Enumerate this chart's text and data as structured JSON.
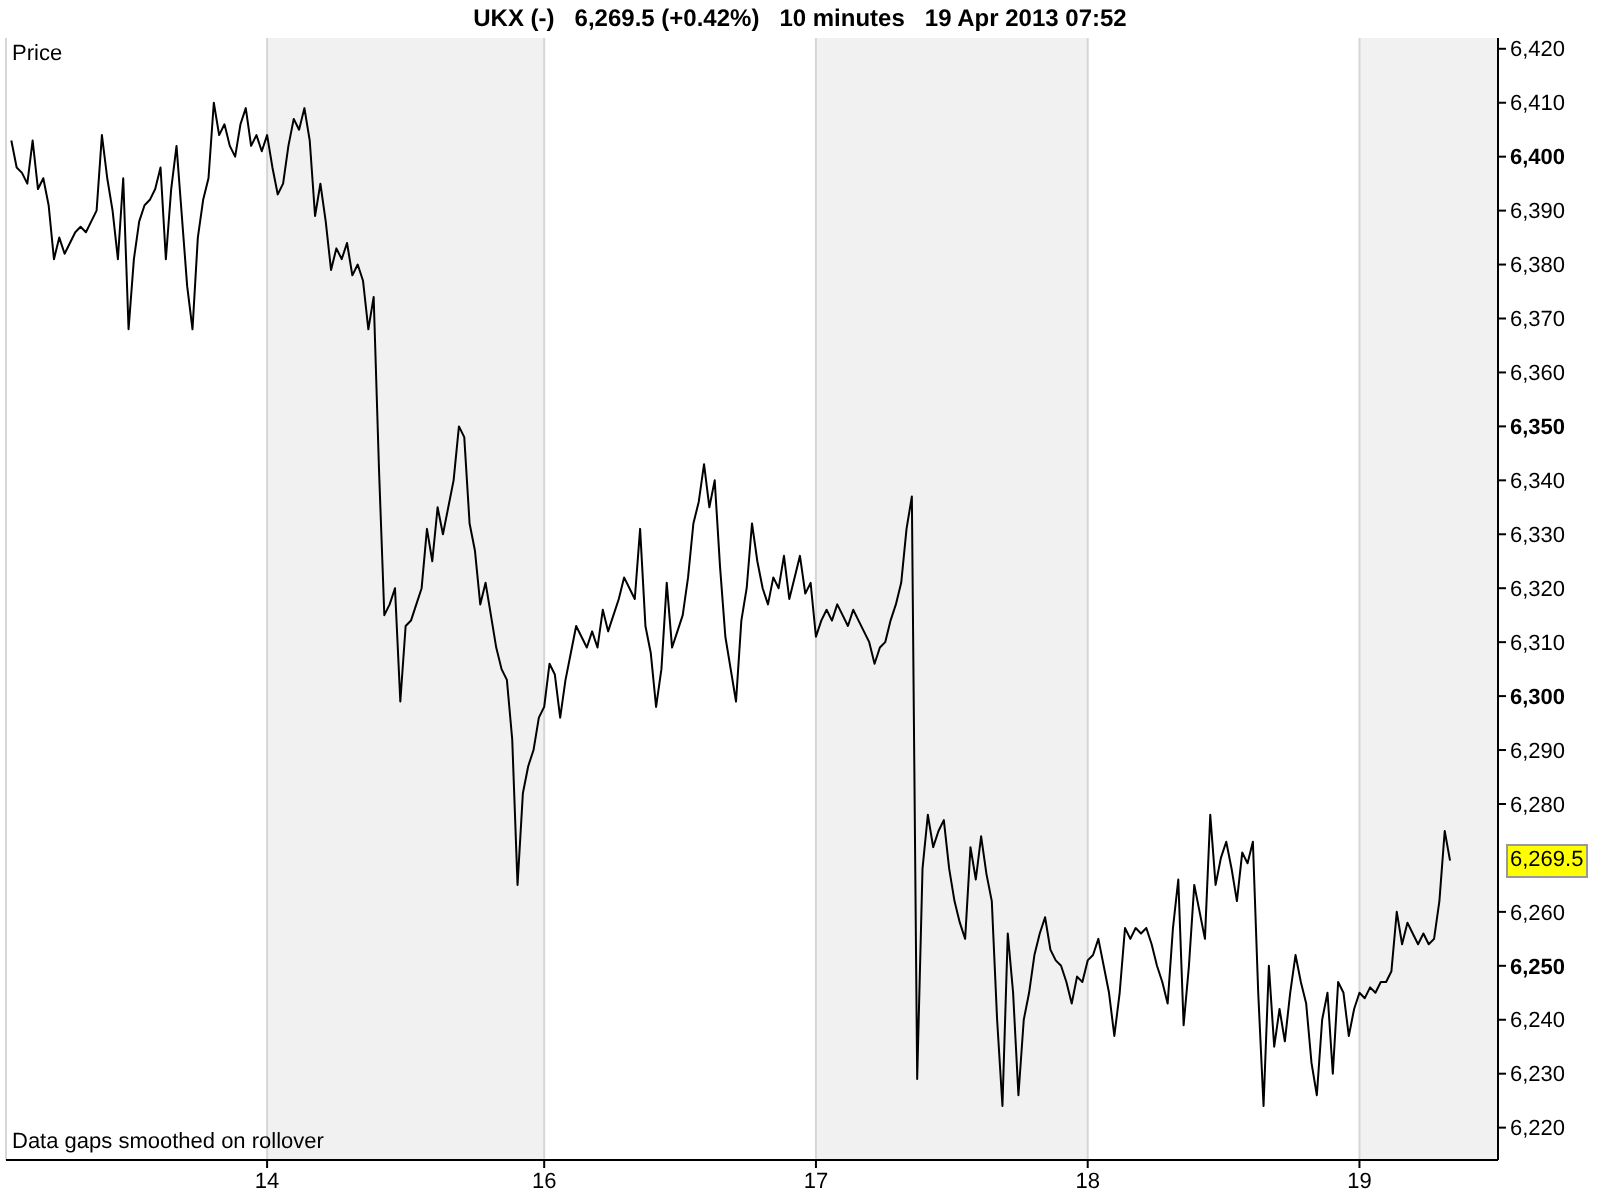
{
  "chart_data": {
    "type": "line",
    "title": "UKX (-)   6,269.5 (+0.42%)   10 minutes   19 Apr 2013 07:52",
    "ylabel": "Price",
    "annotations": [
      "6,269.5",
      "Data gaps smoothed on rollover"
    ],
    "categories": [
      null,
      null,
      null,
      null,
      null,
      null,
      null,
      null,
      null,
      null,
      null,
      null,
      null,
      null,
      null,
      null,
      null,
      null,
      null,
      null,
      null,
      null,
      null,
      null,
      null,
      null,
      null,
      null,
      null,
      null,
      null,
      null,
      null,
      null,
      null,
      null,
      null,
      null,
      null,
      null,
      null,
      null,
      null,
      null,
      null,
      null,
      null,
      null,
      null,
      "14",
      null,
      null,
      null,
      null,
      null,
      null,
      null,
      null,
      null,
      null,
      null,
      null,
      null,
      null,
      null,
      null,
      null,
      null,
      null,
      null,
      null,
      null,
      null,
      null,
      null,
      null,
      null,
      null,
      null,
      null,
      null,
      null,
      null,
      null,
      null,
      null,
      null,
      null,
      null,
      null,
      null,
      null,
      null,
      null,
      null,
      null,
      null,
      null,
      null,
      null,
      null,
      "16",
      null,
      null,
      null,
      null,
      null,
      null,
      null,
      null,
      null,
      null,
      null,
      null,
      null,
      null,
      null,
      null,
      null,
      null,
      null,
      null,
      null,
      null,
      null,
      null,
      null,
      null,
      null,
      null,
      null,
      null,
      null,
      null,
      null,
      null,
      null,
      null,
      null,
      null,
      null,
      null,
      null,
      null,
      null,
      null,
      null,
      null,
      null,
      null,
      null,
      null,
      "17",
      null,
      null,
      null,
      null,
      null,
      null,
      null,
      null,
      null,
      null,
      null,
      null,
      null,
      null,
      null,
      null,
      null,
      null,
      null,
      null,
      null,
      null,
      null,
      null,
      null,
      null,
      null,
      null,
      null,
      null,
      null,
      null,
      null,
      null,
      null,
      null,
      null,
      null,
      null,
      null,
      null,
      null,
      null,
      null,
      null,
      null,
      null,
      null,
      null,
      null,
      "18",
      null,
      null,
      null,
      null,
      null,
      null,
      null,
      null,
      null,
      null,
      null,
      null,
      null,
      null,
      null,
      null,
      null,
      null,
      null,
      null,
      null,
      null,
      null,
      null,
      null,
      null,
      null,
      null,
      null,
      null,
      null,
      null,
      null,
      null,
      null,
      null,
      null,
      null,
      null,
      null,
      null,
      null,
      null,
      null,
      null,
      null,
      null,
      null,
      null,
      null,
      "19",
      null,
      null,
      null,
      null,
      null,
      null,
      null,
      null,
      null,
      null,
      null,
      null,
      null,
      null,
      null,
      null,
      null,
      null,
      null,
      null,
      null,
      null,
      null,
      null,
      null,
      null
    ],
    "series": [
      {
        "color": "#000000",
        "values": [
          null,
          6403,
          6398,
          6397,
          6395,
          6403,
          6394,
          6396,
          6391,
          6381,
          6385,
          6382,
          6384,
          6386,
          6387,
          6386,
          6388,
          6390,
          6404,
          6396,
          6390,
          6381,
          6396,
          6368,
          6381,
          6388,
          6391,
          6392,
          6394,
          6398,
          6381,
          6394,
          6402,
          6389,
          6376,
          6368,
          6385,
          6392,
          6396,
          6410,
          6404,
          6406,
          6402,
          6400,
          6406,
          6409,
          6402,
          6404,
          6401,
          6404,
          6398,
          6393,
          6395,
          6402,
          6407,
          6405,
          6409,
          6403,
          6389,
          6395,
          6388,
          6379,
          6383,
          6381,
          6384,
          6378,
          6380,
          6377,
          6368,
          6374,
          6342,
          6315,
          6317,
          6320,
          6299,
          6313,
          6314,
          6317,
          6320,
          6331,
          6325,
          6335,
          6330,
          6335,
          6340,
          6350,
          6348,
          6332,
          6327,
          6317,
          6321,
          6315,
          6309,
          6305,
          6303,
          6292,
          6265,
          6282,
          6287,
          6290,
          6296,
          6298,
          6306,
          6304,
          6296,
          6303,
          6308,
          6313,
          6311,
          6309,
          6312,
          6309,
          6316,
          6312,
          6315,
          6318,
          6322,
          6320,
          6318,
          6331,
          6313,
          6308,
          6298,
          6305,
          6321,
          6309,
          6312,
          6315,
          6322,
          6332,
          6336,
          6343,
          6335,
          6340,
          6324,
          6311,
          6305,
          6299,
          6314,
          6320,
          6332,
          6325,
          6320,
          6317,
          6322,
          6320,
          6326,
          6318,
          6322,
          6326,
          6319,
          6321,
          6311,
          6314,
          6316,
          6314,
          6317,
          6315,
          6313,
          6316,
          6314,
          6312,
          6310,
          6306,
          6309,
          6310,
          6314,
          6317,
          6321,
          6331,
          6337,
          6229,
          6268,
          6278,
          6272,
          6275,
          6277,
          6268,
          6262,
          6258,
          6255,
          6272,
          6266,
          6274,
          6267,
          6262,
          6240,
          6224,
          6256,
          6245,
          6226,
          6240,
          6245,
          6252,
          6256,
          6259,
          6253,
          6251,
          6250,
          6247,
          6243,
          6248,
          6247,
          6251,
          6252,
          6255,
          6250,
          6245,
          6237,
          6245,
          6257,
          6255,
          6257,
          6256,
          6257,
          6254,
          6250,
          6247,
          6243,
          6257,
          6266,
          6239,
          6250,
          6265,
          6260,
          6255,
          6278,
          6265,
          6270,
          6273,
          6268,
          6262,
          6271,
          6269,
          6273,
          6245,
          6224,
          6250,
          6235,
          6242,
          6236,
          6245,
          6252,
          6247,
          6243,
          6232,
          6226,
          6240,
          6245,
          6230,
          6247,
          6245,
          6237,
          6242,
          6245,
          6244,
          6246,
          6245,
          6247,
          6247,
          6249,
          6260,
          6254,
          6258,
          6256,
          6254,
          6256,
          6254,
          6255,
          6262,
          6275,
          6269.5,
          null,
          null,
          null,
          null,
          null,
          null,
          null,
          null,
          null
        ]
      }
    ],
    "ylim": [
      6214,
      6422
    ],
    "yticks": [
      {
        "value": 6220,
        "label": "6,220"
      },
      {
        "value": 6230,
        "label": "6,230"
      },
      {
        "value": 6240,
        "label": "6,240"
      },
      {
        "value": 6250,
        "label": "6,250"
      },
      {
        "value": 6260,
        "label": "6,260"
      },
      {
        "value": 6280,
        "label": "6,280"
      },
      {
        "value": 6290,
        "label": "6,290"
      },
      {
        "value": 6300,
        "label": "6,300"
      },
      {
        "value": 6310,
        "label": "6,310"
      },
      {
        "value": 6320,
        "label": "6,320"
      },
      {
        "value": 6330,
        "label": "6,330"
      },
      {
        "value": 6340,
        "label": "6,340"
      },
      {
        "value": 6350,
        "label": "6,350"
      },
      {
        "value": 6360,
        "label": "6,360"
      },
      {
        "value": 6370,
        "label": "6,370"
      },
      {
        "value": 6380,
        "label": "6,380"
      },
      {
        "value": 6390,
        "label": "6,390"
      },
      {
        "value": 6400,
        "label": "6,400"
      },
      {
        "value": 6410,
        "label": "6,410"
      },
      {
        "value": 6420,
        "label": "6,420"
      }
    ],
    "grid": "x"
  }
}
